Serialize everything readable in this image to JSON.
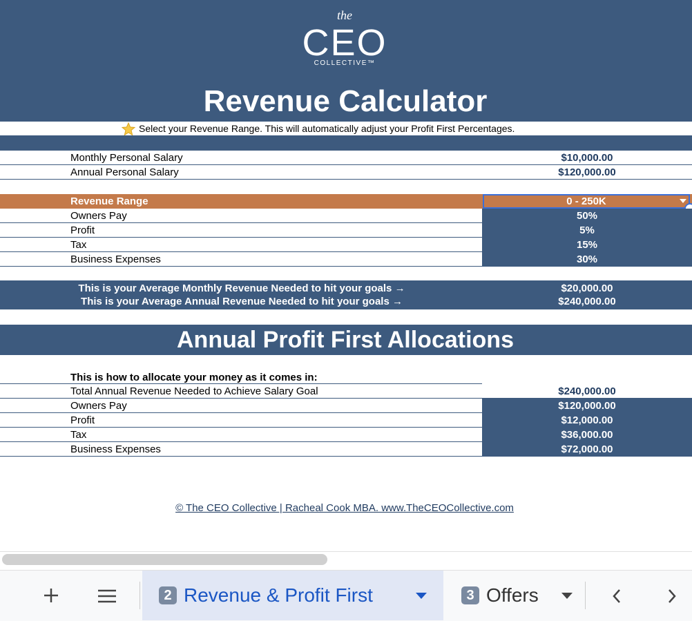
{
  "logo": {
    "the": "the",
    "ceo": "CEO",
    "collective": "COLLECTIVE™"
  },
  "title": "Revenue Calculator",
  "instruction": "Select your Revenue Range. This will automatically adjust your Profit First Percentages.",
  "salary_rows": [
    {
      "label": "Monthly Personal Salary",
      "value": "$10,000.00"
    },
    {
      "label": "Annual Personal Salary",
      "value": "$120,000.00"
    }
  ],
  "revenue_range": {
    "label": "Revenue Range",
    "value": "0 - 250K"
  },
  "percentage_rows": [
    {
      "label": "Owners Pay",
      "value": "50%"
    },
    {
      "label": "Profit",
      "value": "5%"
    },
    {
      "label": "Tax",
      "value": "15%"
    },
    {
      "label": "Business Expenses",
      "value": "30%"
    }
  ],
  "average_rows": [
    {
      "label": "This is your Average Monthly Revenue Needed to hit your goals →",
      "value": "$20,000.00"
    },
    {
      "label": "This is your Average Annual Revenue Needed to hit your goals →",
      "value": "$240,000.00"
    }
  ],
  "section_title": "Annual Profit First Allocations",
  "allocation_intro": "This is how to allocate your money as it comes in:",
  "allocation_rows": [
    {
      "label": "Total Annual Revenue Needed to Achieve Salary Goal",
      "value": "$240,000.00"
    },
    {
      "label": "Owners Pay",
      "value": "$120,000.00"
    },
    {
      "label": "Profit",
      "value": "$12,000.00"
    },
    {
      "label": "Tax",
      "value": "$36,000.00"
    },
    {
      "label": "Business Expenses",
      "value": "$72,000.00"
    }
  ],
  "footer": "© The CEO Collective | Racheal Cook MBA. www.TheCEOCollective.com",
  "tabs": [
    {
      "badge": "2",
      "label": "Revenue & Profit First"
    },
    {
      "badge": "3",
      "label": "Offers"
    }
  ]
}
